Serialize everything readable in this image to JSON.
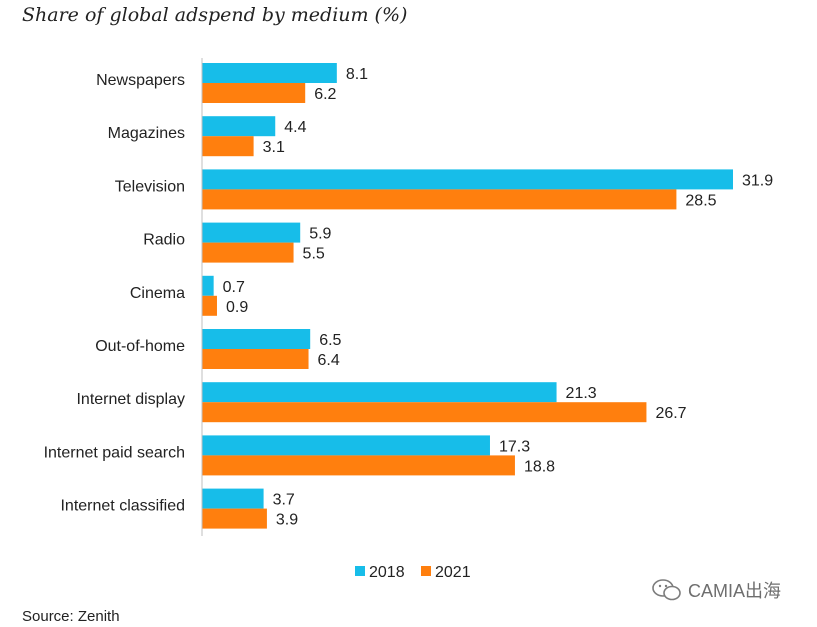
{
  "title": "Share of global adspend by medium (%)",
  "source": "Source: Zenith",
  "watermark": "CAMIA出海",
  "colors": {
    "s2018": "#17BDE9",
    "s2021": "#FF7F0E",
    "axis": "#BFBFBF",
    "text": "#222222"
  },
  "chart_data": {
    "type": "bar",
    "orientation": "horizontal",
    "title": "Share of global adspend by medium (%)",
    "categories": [
      "Newspapers",
      "Magazines",
      "Television",
      "Radio",
      "Cinema",
      "Out-of-home",
      "Internet display",
      "Internet paid search",
      "Internet classified"
    ],
    "series": [
      {
        "name": "2018",
        "values": [
          8.1,
          4.4,
          31.9,
          5.9,
          0.7,
          6.5,
          21.3,
          17.3,
          3.7
        ]
      },
      {
        "name": "2021",
        "values": [
          6.2,
          3.1,
          28.5,
          5.5,
          0.9,
          6.4,
          26.7,
          18.8,
          3.9
        ]
      }
    ],
    "xlim": [
      0,
      31.9
    ],
    "grid": false,
    "legend": "bottom"
  }
}
